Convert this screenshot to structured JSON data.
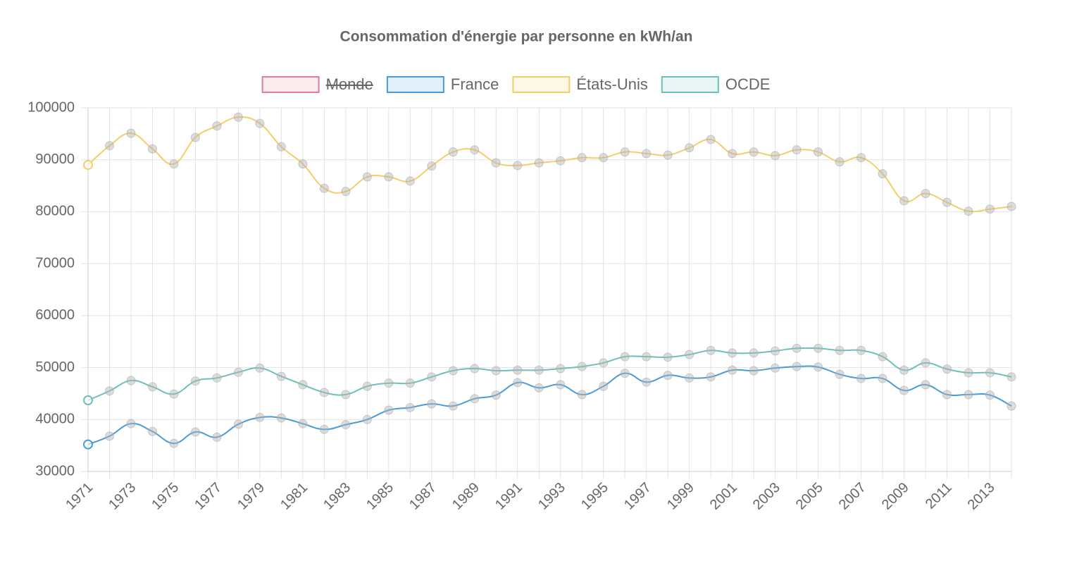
{
  "chart_data": {
    "type": "line",
    "title": "Consommation d'énergie par personne en kWh/an",
    "categories": [
      "1971",
      null,
      "1973",
      null,
      "1975",
      null,
      "1977",
      null,
      "1979",
      null,
      "1981",
      null,
      "1983",
      null,
      "1985",
      null,
      "1987",
      null,
      "1989",
      null,
      "1991",
      null,
      "1993",
      null,
      "1995",
      null,
      "1997",
      null,
      "1999",
      null,
      "2001",
      null,
      "2003",
      null,
      "2005",
      null,
      "2007",
      null,
      "2009",
      null,
      "2011",
      null,
      "2013",
      null
    ],
    "series": [
      {
        "name": "Monde",
        "color": "#e07d94",
        "hidden": true,
        "values": [
          null,
          null,
          null,
          null,
          null,
          null,
          null,
          null,
          null,
          null,
          null,
          null,
          null,
          null,
          null,
          null,
          null,
          null,
          null,
          null,
          null,
          null,
          null,
          null,
          null,
          null,
          null,
          null,
          null,
          null,
          null,
          null,
          null,
          null,
          null,
          null,
          null,
          null,
          null,
          null,
          null,
          null,
          null,
          null
        ]
      },
      {
        "name": "France",
        "color": "#4a9ad8",
        "values": [
          35200,
          36800,
          39200,
          37700,
          35400,
          37600,
          36600,
          39100,
          40400,
          40300,
          39200,
          38100,
          39000,
          40000,
          41800,
          42300,
          43000,
          42600,
          44000,
          44700,
          47100,
          46100,
          46700,
          44800,
          46400,
          48900,
          47200,
          48500,
          48000,
          48200,
          49500,
          49400,
          49900,
          50200,
          50100,
          48700,
          47900,
          47900,
          45600,
          46700,
          44800,
          44800,
          44700,
          42600
        ]
      },
      {
        "name": "États-Unis",
        "color": "#f5cd6a",
        "values": [
          89000,
          92700,
          95100,
          92100,
          89200,
          94300,
          96500,
          98200,
          97000,
          92500,
          89200,
          84500,
          83900,
          86700,
          86700,
          85900,
          88800,
          91500,
          91900,
          89400,
          88900,
          89400,
          89800,
          90400,
          90400,
          91500,
          91200,
          90900,
          92300,
          93900,
          91200,
          91500,
          90800,
          91900,
          91500,
          89600,
          90400,
          87300,
          82100,
          83500,
          81800,
          80100,
          80500,
          81000
        ]
      },
      {
        "name": "OCDE",
        "color": "#6cc0bb",
        "values": [
          43700,
          45500,
          47500,
          46300,
          44900,
          47400,
          48000,
          49100,
          49900,
          48300,
          46700,
          45200,
          44800,
          46400,
          47000,
          47000,
          48200,
          49400,
          49800,
          49400,
          49500,
          49500,
          49800,
          50200,
          50900,
          52100,
          52100,
          52000,
          52500,
          53300,
          52800,
          52800,
          53200,
          53700,
          53700,
          53300,
          53300,
          52100,
          49500,
          50900,
          49700,
          49000,
          49000,
          48200
        ]
      }
    ],
    "ylim": [
      30000,
      100000
    ],
    "yticks": [
      30000,
      40000,
      50000,
      60000,
      70000,
      80000,
      90000,
      100000
    ],
    "grid": true,
    "legend": "top"
  }
}
